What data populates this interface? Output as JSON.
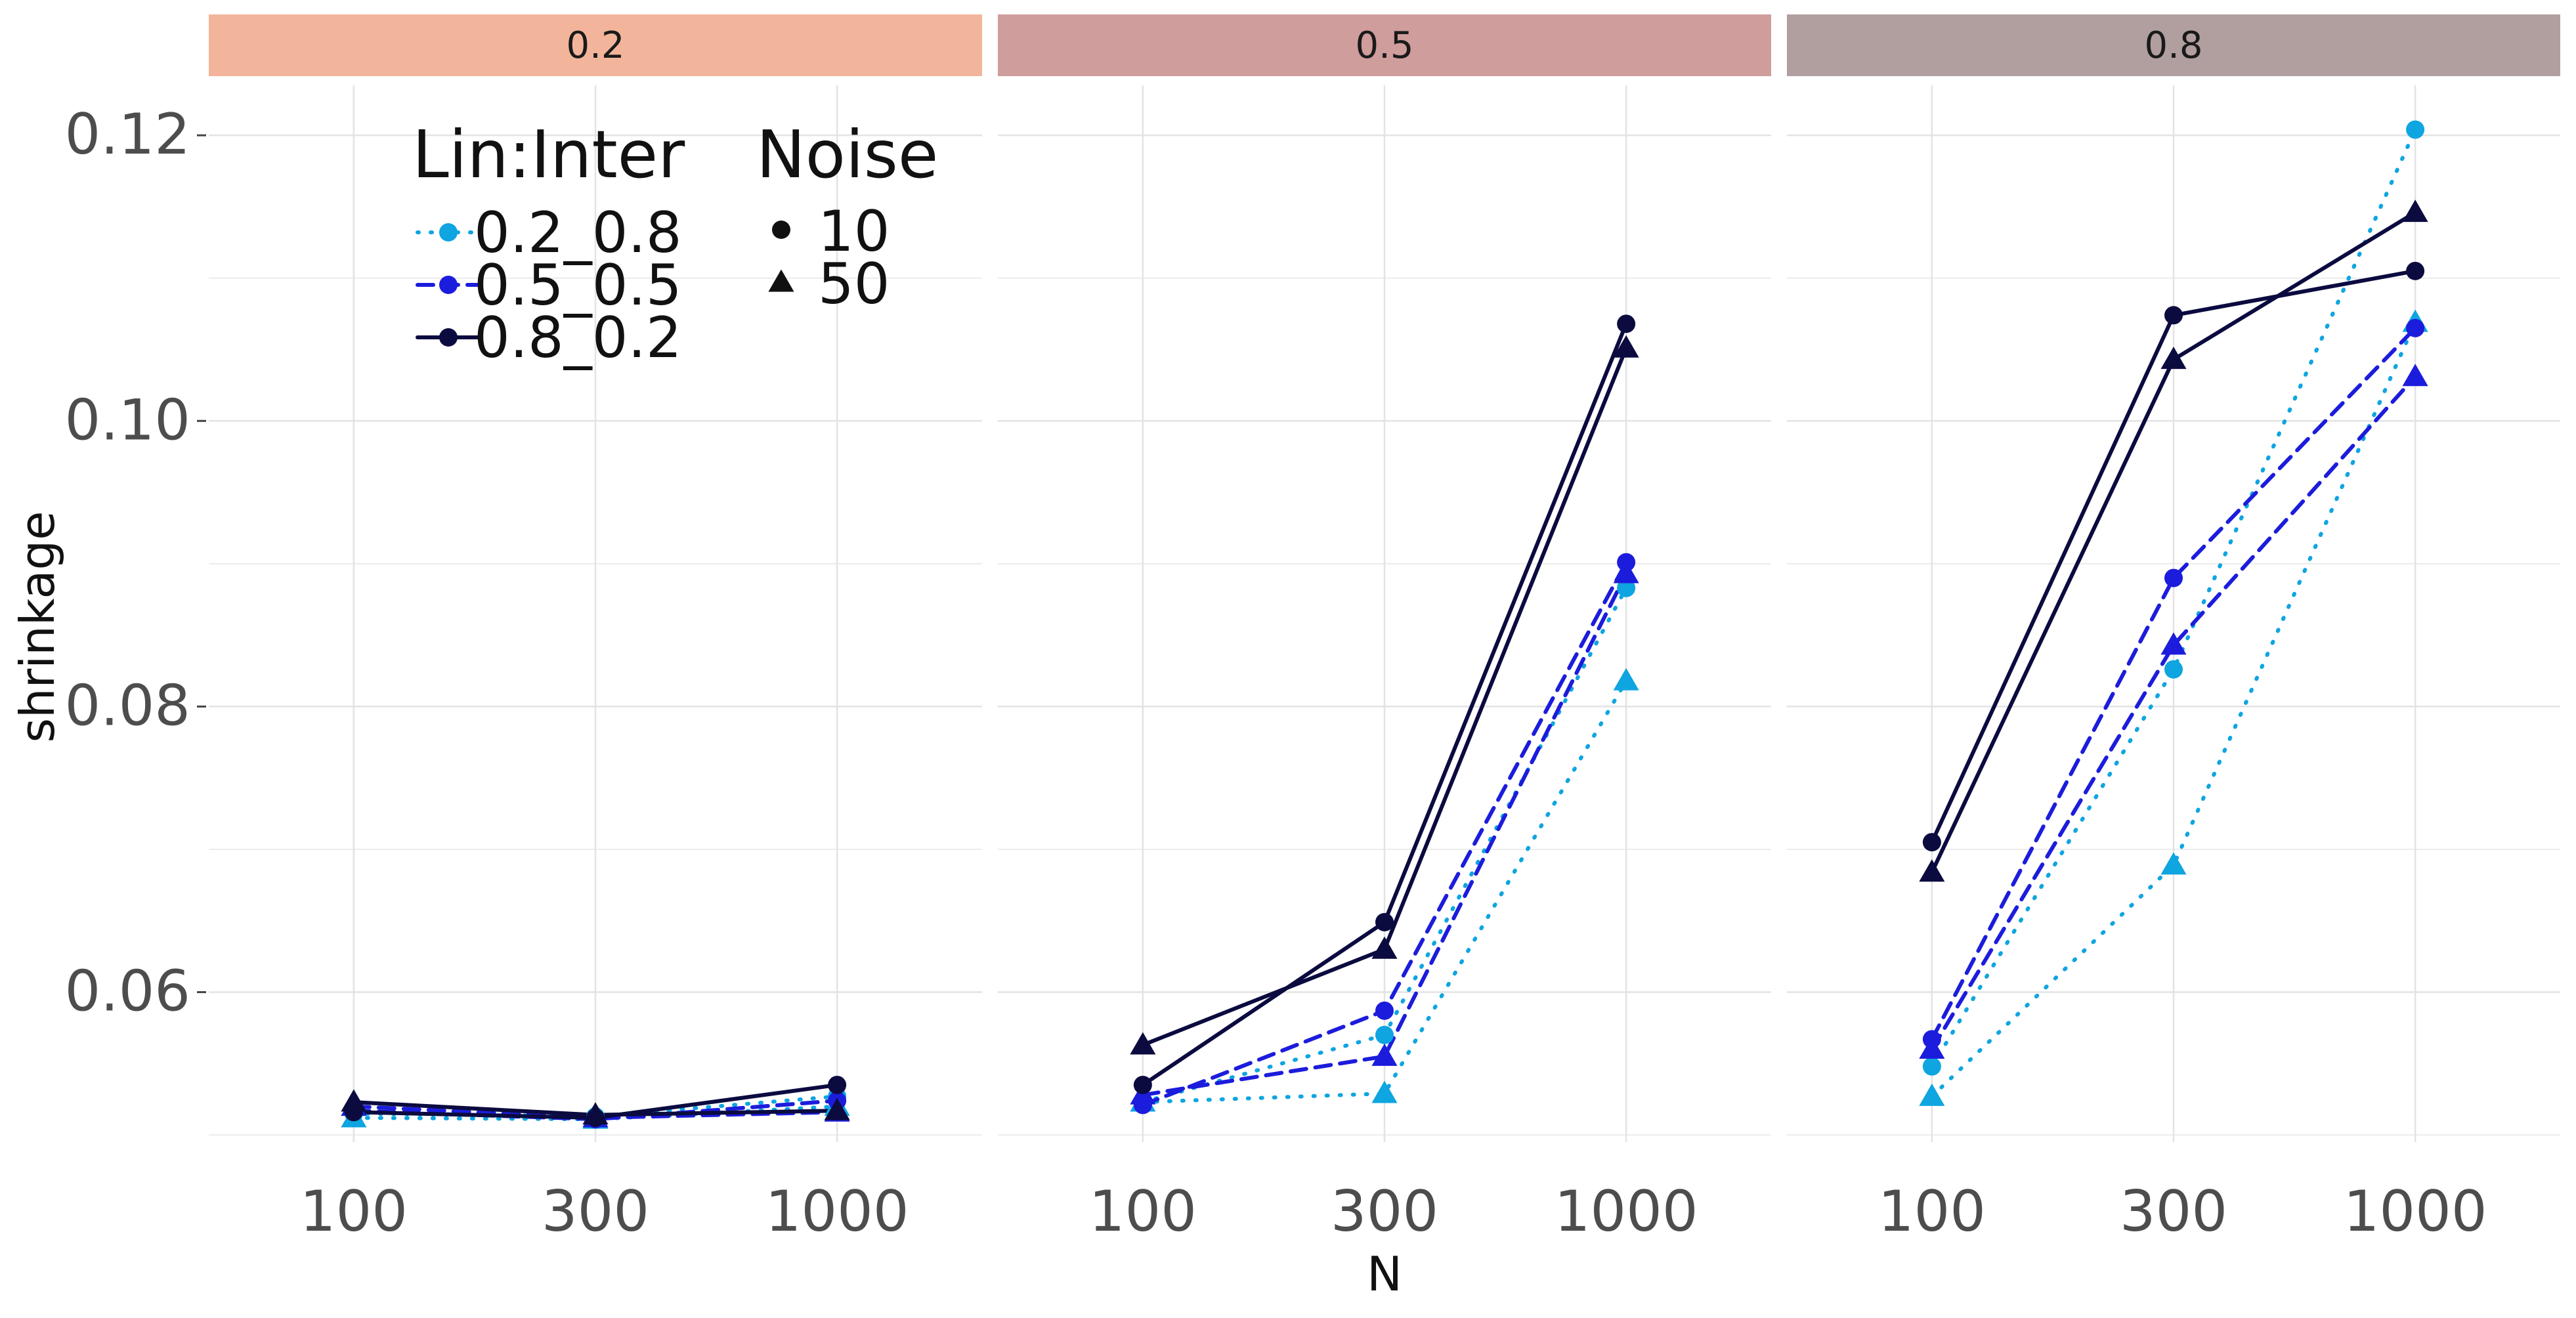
{
  "chart_data": {
    "type": "line",
    "facet_labels": [
      "0.2",
      "0.5",
      "0.8"
    ],
    "facet_colors": [
      "#f2b59b",
      "#cf9d9c",
      "#b19f9f"
    ],
    "x_categories": [
      "100",
      "300",
      "1000"
    ],
    "xlabel": "N",
    "ylabel": "shrinkage",
    "ylim": [
      0.0495,
      0.1235
    ],
    "y_ticks": [
      0.06,
      0.08,
      0.1,
      0.12
    ],
    "y_tick_labels": [
      "0.06",
      "0.08",
      "0.10",
      "0.12"
    ],
    "grid": true,
    "legend": {
      "placement": "top-left",
      "color_title": "Lin:Inter",
      "shape_title": "Noise",
      "color_entries": [
        {
          "label": "0.2_0.8",
          "color": "#0ea5e0",
          "linetype": "dotted"
        },
        {
          "label": "0.5_0.5",
          "color": "#1c1cdc",
          "linetype": "dashed"
        },
        {
          "label": "0.8_0.2",
          "color": "#0b0b40",
          "linetype": "solid"
        }
      ],
      "shape_entries": [
        {
          "label": "10",
          "shape": "circle"
        },
        {
          "label": "50",
          "shape": "triangle"
        }
      ]
    },
    "series": [
      {
        "facet": 0,
        "lin_inter": "0.2_0.8",
        "noise": "10",
        "values": [
          0.0515,
          0.0513,
          0.0527
        ]
      },
      {
        "facet": 0,
        "lin_inter": "0.2_0.8",
        "noise": "50",
        "values": [
          0.0512,
          0.0511,
          0.052
        ]
      },
      {
        "facet": 0,
        "lin_inter": "0.5_0.5",
        "noise": "10",
        "values": [
          0.0517,
          0.0511,
          0.0524
        ]
      },
      {
        "facet": 0,
        "lin_inter": "0.5_0.5",
        "noise": "50",
        "values": [
          0.052,
          0.0512,
          0.0516
        ]
      },
      {
        "facet": 0,
        "lin_inter": "0.8_0.2",
        "noise": "10",
        "values": [
          0.0516,
          0.0512,
          0.0535
        ]
      },
      {
        "facet": 0,
        "lin_inter": "0.8_0.2",
        "noise": "50",
        "values": [
          0.0523,
          0.0514,
          0.0517
        ]
      },
      {
        "facet": 1,
        "lin_inter": "0.2_0.8",
        "noise": "10",
        "values": [
          0.0523,
          0.057,
          0.0883
        ]
      },
      {
        "facet": 1,
        "lin_inter": "0.2_0.8",
        "noise": "50",
        "values": [
          0.0523,
          0.0529,
          0.0818
        ]
      },
      {
        "facet": 1,
        "lin_inter": "0.5_0.5",
        "noise": "10",
        "values": [
          0.0521,
          0.0587,
          0.0901
        ]
      },
      {
        "facet": 1,
        "lin_inter": "0.5_0.5",
        "noise": "50",
        "values": [
          0.0528,
          0.0555,
          0.0893
        ]
      },
      {
        "facet": 1,
        "lin_inter": "0.8_0.2",
        "noise": "10",
        "values": [
          0.0535,
          0.0649,
          0.1068
        ]
      },
      {
        "facet": 1,
        "lin_inter": "0.8_0.2",
        "noise": "50",
        "values": [
          0.0563,
          0.063,
          0.1051
        ]
      },
      {
        "facet": 2,
        "lin_inter": "0.2_0.8",
        "noise": "10",
        "values": [
          0.0548,
          0.0826,
          0.1204
        ]
      },
      {
        "facet": 2,
        "lin_inter": "0.2_0.8",
        "noise": "50",
        "values": [
          0.0527,
          0.0689,
          0.1069
        ]
      },
      {
        "facet": 2,
        "lin_inter": "0.5_0.5",
        "noise": "10",
        "values": [
          0.0567,
          0.089,
          0.1065
        ]
      },
      {
        "facet": 2,
        "lin_inter": "0.5_0.5",
        "noise": "50",
        "values": [
          0.056,
          0.0843,
          0.1031
        ]
      },
      {
        "facet": 2,
        "lin_inter": "0.8_0.2",
        "noise": "10",
        "values": [
          0.0705,
          0.1074,
          0.1105
        ]
      },
      {
        "facet": 2,
        "lin_inter": "0.8_0.2",
        "noise": "50",
        "values": [
          0.0684,
          0.1043,
          0.1146
        ]
      }
    ]
  }
}
